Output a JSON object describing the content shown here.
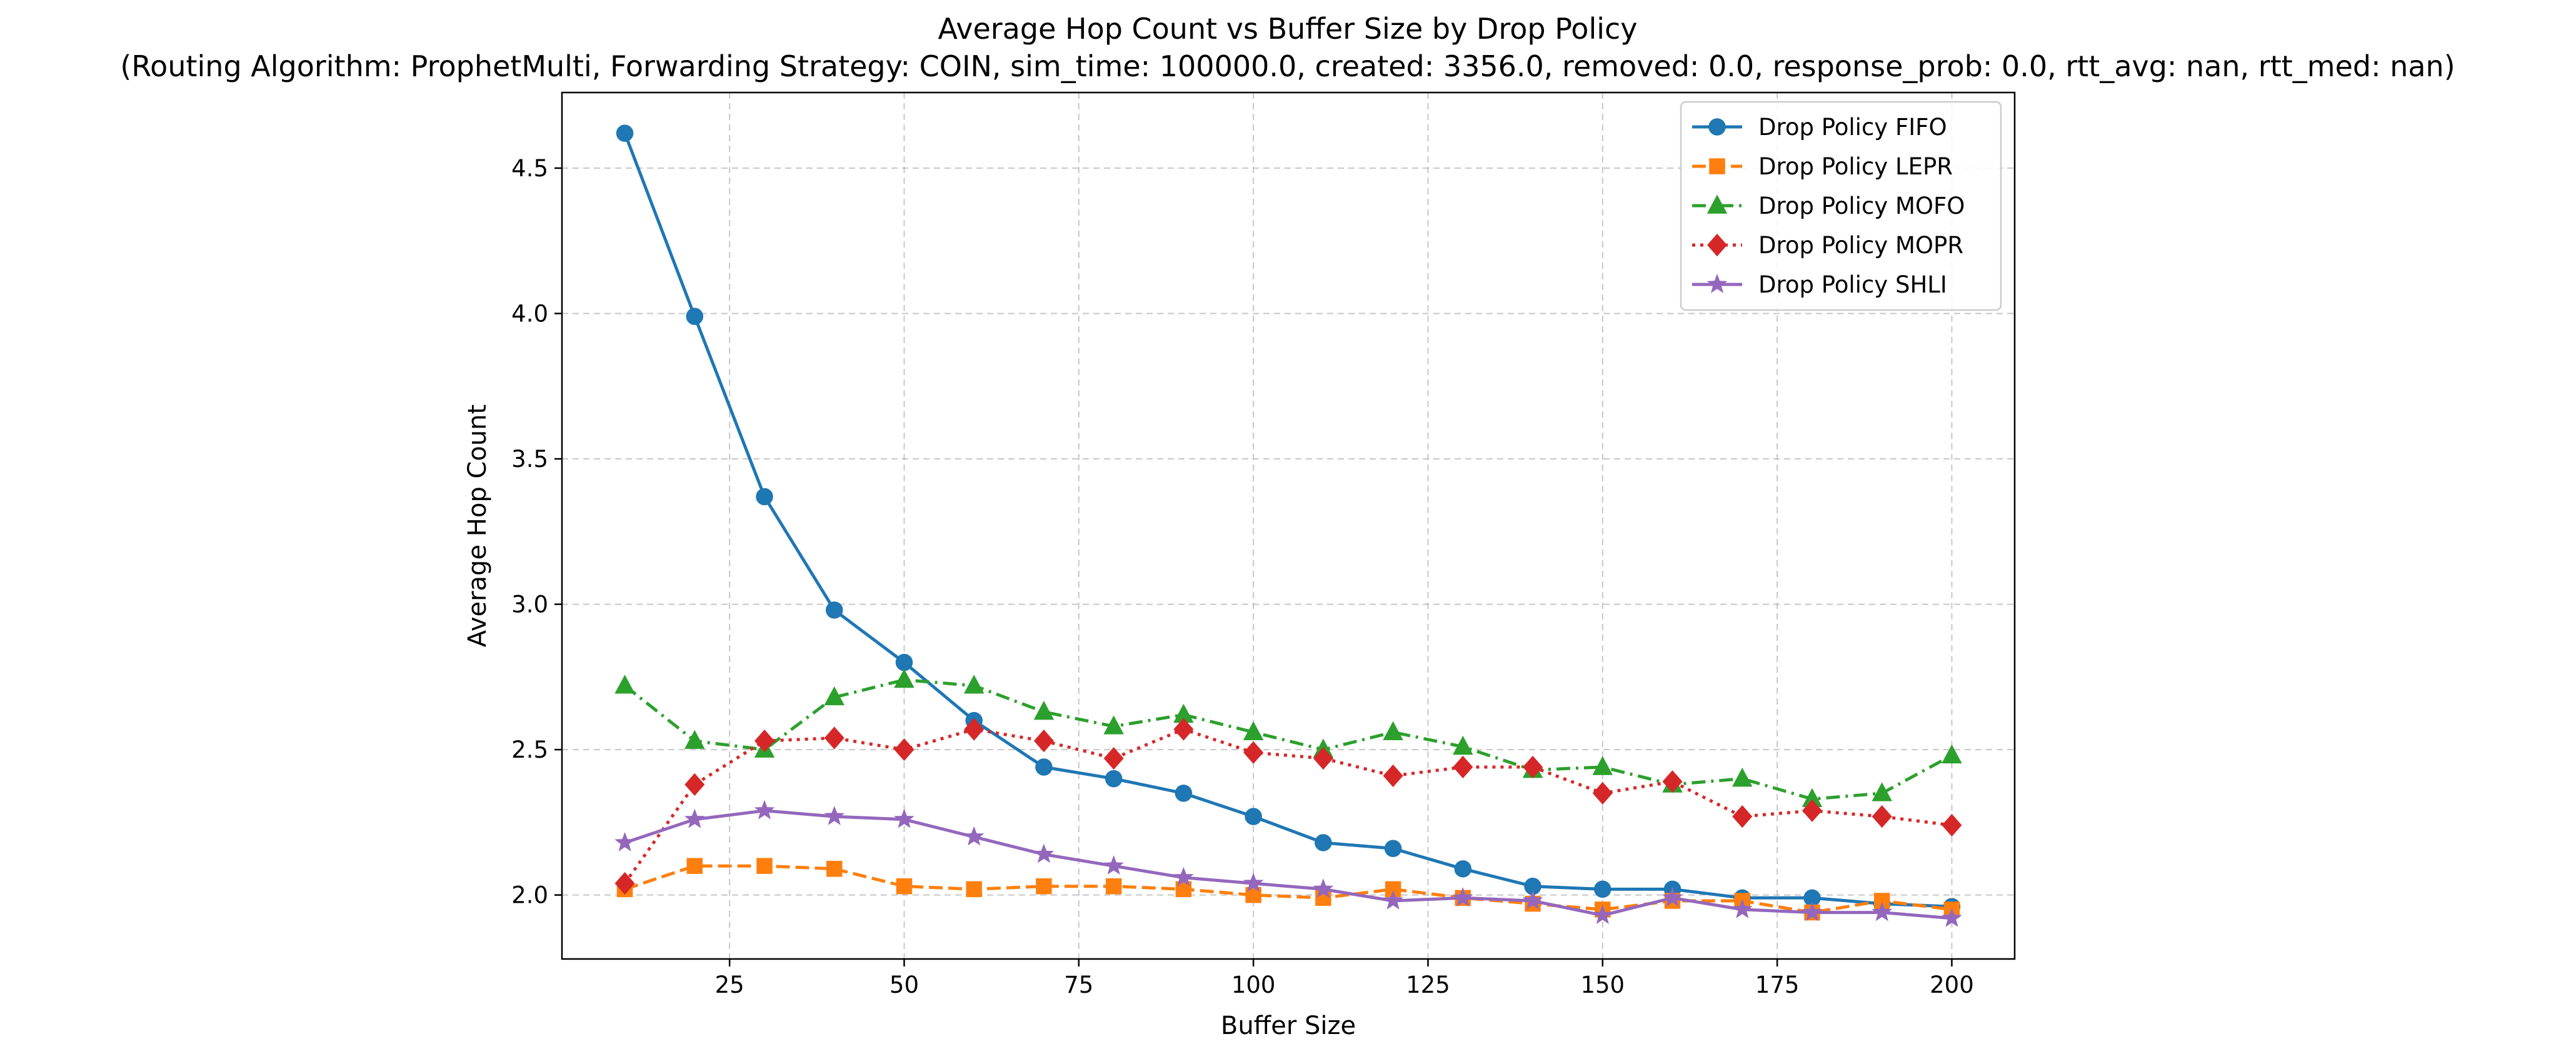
{
  "chart_data": {
    "type": "line",
    "title": "Average Hop Count vs Buffer Size by Drop Policy",
    "subtitle": "(Routing Algorithm: ProphetMulti, Forwarding Strategy: COIN, sim_time: 100000.0, created: 3356.0, removed: 0.0, response_prob: 0.0, rtt_avg: nan, rtt_med: nan)",
    "xlabel": "Buffer Size",
    "ylabel": "Average Hop Count",
    "xlim": [
      1,
      209
    ],
    "ylim": [
      1.78,
      4.76
    ],
    "xticks": [
      25,
      50,
      75,
      100,
      125,
      150,
      175,
      200
    ],
    "xtick_labels": [
      "25",
      "50",
      "75",
      "100",
      "125",
      "150",
      "175",
      "200"
    ],
    "yticks": [
      2.0,
      2.5,
      3.0,
      3.5,
      4.0,
      4.5
    ],
    "ytick_labels": [
      "2.0",
      "2.5",
      "3.0",
      "3.5",
      "4.0",
      "4.5"
    ],
    "grid": true,
    "legend_position": "top-right",
    "x": [
      10,
      20,
      30,
      40,
      50,
      60,
      70,
      80,
      90,
      100,
      110,
      120,
      130,
      140,
      150,
      160,
      170,
      180,
      190,
      200
    ],
    "series": [
      {
        "name": "Drop Policy FIFO",
        "color": "#1f77b4",
        "line_style": "solid",
        "marker": "circle",
        "values": [
          4.62,
          3.99,
          3.37,
          2.98,
          2.8,
          2.6,
          2.44,
          2.4,
          2.35,
          2.27,
          2.18,
          2.16,
          2.09,
          2.03,
          2.02,
          2.02,
          1.99,
          1.99,
          1.97,
          1.96
        ]
      },
      {
        "name": "Drop Policy LEPR",
        "color": "#ff7f0e",
        "line_style": "dashed",
        "marker": "square",
        "values": [
          2.02,
          2.1,
          2.1,
          2.09,
          2.03,
          2.02,
          2.03,
          2.03,
          2.02,
          2.0,
          1.99,
          2.02,
          1.99,
          1.97,
          1.95,
          1.98,
          1.98,
          1.94,
          1.98,
          1.95
        ]
      },
      {
        "name": "Drop Policy MOFO",
        "color": "#2ca02c",
        "line_style": "dashdot",
        "marker": "triangle",
        "values": [
          2.72,
          2.53,
          2.5,
          2.68,
          2.74,
          2.72,
          2.63,
          2.58,
          2.62,
          2.56,
          2.5,
          2.56,
          2.51,
          2.43,
          2.44,
          2.38,
          2.4,
          2.33,
          2.35,
          2.48
        ]
      },
      {
        "name": "Drop Policy MOPR",
        "color": "#d62728",
        "line_style": "dotted",
        "marker": "diamond",
        "values": [
          2.04,
          2.38,
          2.53,
          2.54,
          2.5,
          2.57,
          2.53,
          2.47,
          2.57,
          2.49,
          2.47,
          2.41,
          2.44,
          2.44,
          2.35,
          2.39,
          2.27,
          2.29,
          2.27,
          2.24
        ]
      },
      {
        "name": "Drop Policy SHLI",
        "color": "#9467bd",
        "line_style": "solid",
        "marker": "star",
        "values": [
          2.18,
          2.26,
          2.29,
          2.27,
          2.26,
          2.2,
          2.14,
          2.1,
          2.06,
          2.04,
          2.02,
          1.98,
          1.99,
          1.98,
          1.93,
          1.99,
          1.95,
          1.94,
          1.94,
          1.92
        ]
      }
    ]
  }
}
